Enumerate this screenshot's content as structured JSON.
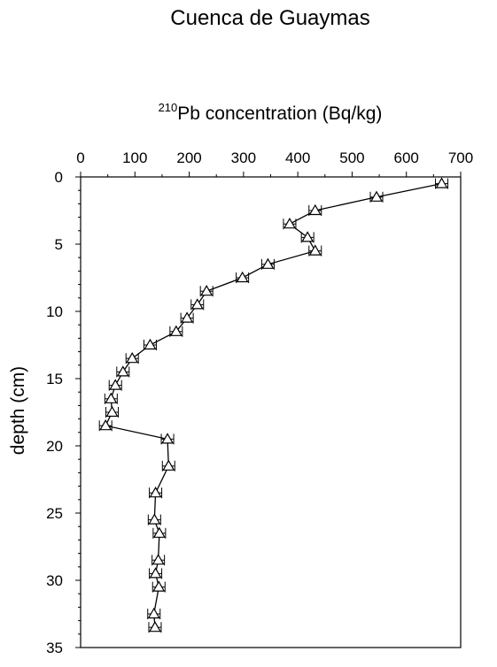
{
  "chart_data": {
    "type": "line",
    "title": "Cuenca de Guaymas",
    "xlabel": {
      "isotope_mass": "210",
      "text": "Pb concentration (Bq/kg)"
    },
    "ylabel": "depth (cm)",
    "x_axis_position": "top",
    "y_axis_inverted": true,
    "xlim": [
      0,
      700
    ],
    "ylim": [
      0,
      35
    ],
    "x_ticks": [
      "0",
      "100",
      "200",
      "300",
      "400",
      "500",
      "600",
      "700"
    ],
    "y_ticks": [
      "0",
      "5",
      "10",
      "15",
      "20",
      "25",
      "30",
      "35"
    ],
    "grid": false,
    "legend": "none",
    "marker": "triangle-open",
    "line_color": "#000000",
    "series": [
      {
        "points": [
          {
            "depth": 0.5,
            "concentration": 665
          },
          {
            "depth": 1.5,
            "concentration": 545
          },
          {
            "depth": 2.5,
            "concentration": 432
          },
          {
            "depth": 3.5,
            "concentration": 385
          },
          {
            "depth": 4.5,
            "concentration": 418
          },
          {
            "depth": 5.5,
            "concentration": 432
          },
          {
            "depth": 6.5,
            "concentration": 345
          },
          {
            "depth": 7.5,
            "concentration": 298
          },
          {
            "depth": 8.5,
            "concentration": 232
          },
          {
            "depth": 9.5,
            "concentration": 215
          },
          {
            "depth": 10.5,
            "concentration": 196
          },
          {
            "depth": 11.5,
            "concentration": 176
          },
          {
            "depth": 12.5,
            "concentration": 128
          },
          {
            "depth": 13.5,
            "concentration": 95
          },
          {
            "depth": 14.5,
            "concentration": 78
          },
          {
            "depth": 15.5,
            "concentration": 64
          },
          {
            "depth": 16.5,
            "concentration": 56
          },
          {
            "depth": 17.5,
            "concentration": 58
          },
          {
            "depth": 18.5,
            "concentration": 46
          },
          {
            "depth": 19.5,
            "concentration": 160
          },
          {
            "depth": 21.5,
            "concentration": 162
          },
          {
            "depth": 23.5,
            "concentration": 138
          },
          {
            "depth": 25.5,
            "concentration": 136
          },
          {
            "depth": 26.5,
            "concentration": 145
          },
          {
            "depth": 28.5,
            "concentration": 143
          },
          {
            "depth": 29.5,
            "concentration": 138
          },
          {
            "depth": 30.5,
            "concentration": 144
          },
          {
            "depth": 32.5,
            "concentration": 135
          },
          {
            "depth": 33.5,
            "concentration": 137
          }
        ]
      }
    ]
  }
}
